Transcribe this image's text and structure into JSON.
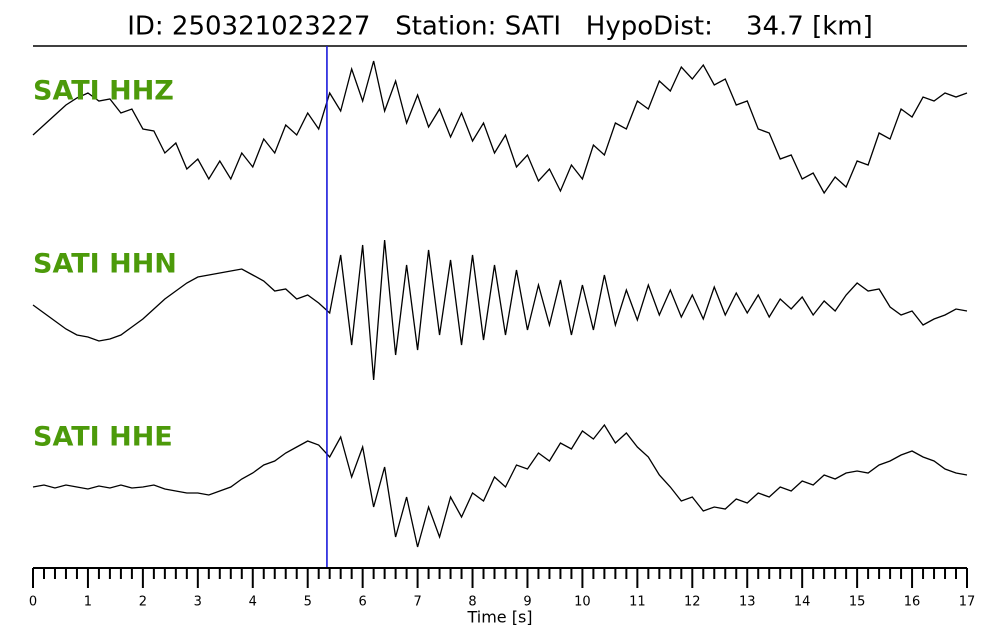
{
  "chart_data": {
    "type": "line",
    "title": "ID: 250321023227   Station: SATI   HypoDist:    34.7 [km]",
    "xlabel": "Time [s]",
    "xlim": [
      0,
      17
    ],
    "xticks": [
      0,
      1,
      2,
      3,
      4,
      5,
      6,
      7,
      8,
      9,
      10,
      11,
      12,
      13,
      14,
      15,
      16,
      17
    ],
    "ylim": [
      -85,
      85
    ],
    "vlines": [
      5.35
    ],
    "vline_color": "#1a1adc",
    "label_color": "#4c9a0a",
    "x": [
      0,
      0.2,
      0.4,
      0.6,
      0.8,
      1,
      1.2,
      1.4,
      1.6,
      1.8,
      2,
      2.2,
      2.4,
      2.6,
      2.8,
      3,
      3.2,
      3.4,
      3.6,
      3.8,
      4,
      4.2,
      4.4,
      4.6,
      4.8,
      5,
      5.2,
      5.4,
      5.6,
      5.8,
      6,
      6.2,
      6.4,
      6.6,
      6.8,
      7,
      7.2,
      7.4,
      7.6,
      7.8,
      8,
      8.2,
      8.4,
      8.6,
      8.8,
      9,
      9.2,
      9.4,
      9.6,
      9.8,
      10,
      10.2,
      10.4,
      10.6,
      10.8,
      11,
      11.2,
      11.4,
      11.6,
      11.8,
      12,
      12.2,
      12.4,
      12.6,
      12.8,
      13,
      13.2,
      13.4,
      13.6,
      13.8,
      14,
      14.2,
      14.4,
      14.6,
      14.8,
      15,
      15.2,
      15.4,
      15.6,
      15.8,
      16,
      16.2,
      16.4,
      16.6,
      16.8,
      17
    ],
    "series": [
      {
        "name": "SATI HHZ",
        "color": "#000000",
        "values": [
          -4,
          6,
          16,
          26,
          33,
          38,
          30,
          32,
          18,
          22,
          2,
          0,
          -22,
          -12,
          -38,
          -28,
          -48,
          -30,
          -48,
          -22,
          -36,
          -8,
          -22,
          6,
          -4,
          18,
          2,
          38,
          20,
          62,
          30,
          70,
          20,
          50,
          8,
          36,
          4,
          22,
          -6,
          18,
          -10,
          8,
          -22,
          -4,
          -36,
          -24,
          -50,
          -38,
          -60,
          -34,
          -48,
          -14,
          -24,
          8,
          2,
          30,
          22,
          50,
          40,
          64,
          52,
          66,
          46,
          52,
          26,
          30,
          2,
          -2,
          -28,
          -24,
          -48,
          -42,
          -62,
          -46,
          -56,
          -30,
          -34,
          -2,
          -8,
          22,
          14,
          34,
          30,
          38,
          34,
          38
        ]
      },
      {
        "name": "SATI HHN",
        "color": "#000000",
        "values": [
          0,
          -8,
          -16,
          -24,
          -30,
          -32,
          -36,
          -34,
          -30,
          -22,
          -14,
          -4,
          6,
          14,
          22,
          28,
          30,
          32,
          34,
          36,
          30,
          24,
          14,
          16,
          6,
          10,
          2,
          -8,
          50,
          -40,
          60,
          -75,
          65,
          -50,
          40,
          -45,
          55,
          -30,
          45,
          -40,
          50,
          -35,
          40,
          -30,
          35,
          -25,
          20,
          -20,
          25,
          -30,
          20,
          -25,
          30,
          -20,
          15,
          -15,
          20,
          -10,
          15,
          -12,
          10,
          -14,
          18,
          -10,
          12,
          -8,
          10,
          -12,
          6,
          -4,
          8,
          -10,
          4,
          -6,
          10,
          22,
          14,
          16,
          -2,
          -10,
          -6,
          -20,
          -14,
          -10,
          -4,
          -6
        ]
      },
      {
        "name": "SATI HHE",
        "color": "#000000",
        "values": [
          0,
          2,
          -1,
          2,
          0,
          -2,
          1,
          -1,
          2,
          -1,
          0,
          2,
          -2,
          -4,
          -6,
          -6,
          -8,
          -4,
          0,
          8,
          14,
          22,
          26,
          34,
          40,
          46,
          42,
          30,
          50,
          10,
          40,
          -20,
          20,
          -50,
          -10,
          -60,
          -20,
          -50,
          -10,
          -30,
          -6,
          -14,
          10,
          0,
          22,
          18,
          34,
          26,
          44,
          38,
          56,
          48,
          62,
          44,
          54,
          40,
          30,
          12,
          0,
          -14,
          -10,
          -24,
          -20,
          -22,
          -12,
          -16,
          -6,
          -10,
          0,
          -4,
          6,
          2,
          12,
          8,
          14,
          16,
          14,
          22,
          26,
          32,
          36,
          30,
          26,
          18,
          14,
          12
        ]
      }
    ]
  }
}
